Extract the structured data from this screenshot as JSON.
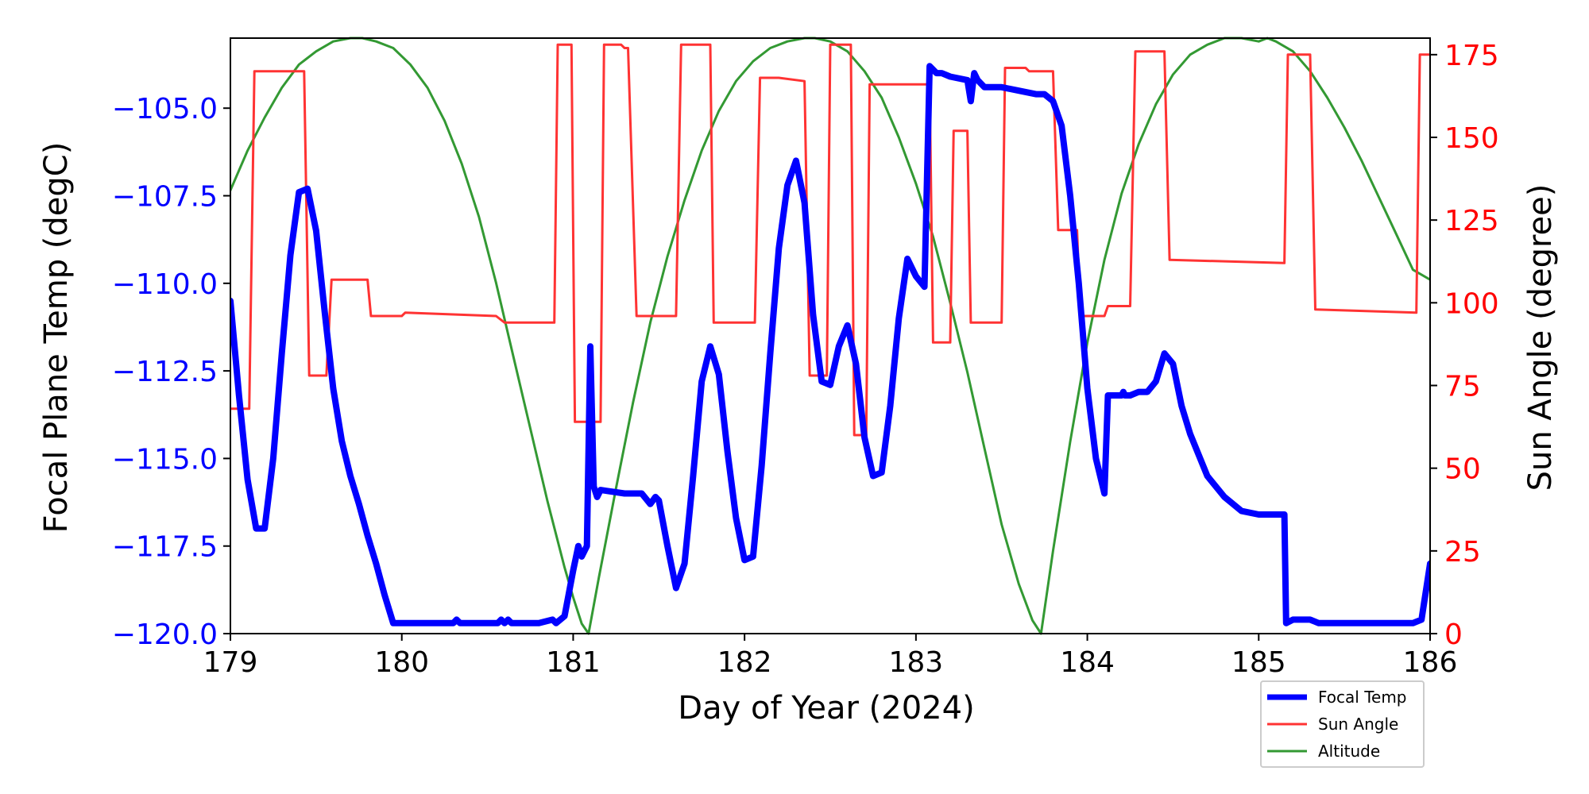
{
  "chart_data": {
    "type": "line",
    "title": "",
    "xlabel": "Day of Year (2024)",
    "ylabel_left": "Focal Plane Temp (degC)",
    "ylabel_right": "Sun Angle (degree)",
    "xlim": [
      179,
      186
    ],
    "ylim_left": [
      -120,
      -103
    ],
    "ylim_right": [
      0,
      180
    ],
    "xticks": [
      "179",
      "180",
      "181",
      "182",
      "183",
      "184",
      "185",
      "186"
    ],
    "yticks_left": [
      "−120.0",
      "−117.5",
      "−115.0",
      "−112.5",
      "−110.0",
      "−107.5",
      "−105.0"
    ],
    "yticks_right": [
      "0",
      "25",
      "50",
      "75",
      "100",
      "125",
      "150",
      "175"
    ],
    "grid": false,
    "legend_position": "lower-right",
    "colors": {
      "left_axis": "#0000ff",
      "right_axis": "#ff0000"
    },
    "series": [
      {
        "name": "Focal Temp",
        "axis": "left",
        "color": "#0000ff",
        "x": [
          179.0,
          179.05,
          179.1,
          179.15,
          179.2,
          179.25,
          179.3,
          179.35,
          179.4,
          179.45,
          179.5,
          179.55,
          179.6,
          179.65,
          179.7,
          179.75,
          179.8,
          179.85,
          179.9,
          179.95,
          180.0,
          180.1,
          180.3,
          180.32,
          180.34,
          180.5,
          180.56,
          180.58,
          180.6,
          180.62,
          180.64,
          180.8,
          180.88,
          180.9,
          180.95,
          181.0,
          181.03,
          181.05,
          181.08,
          181.1,
          181.12,
          181.14,
          181.16,
          181.3,
          181.4,
          181.45,
          181.48,
          181.5,
          181.55,
          181.6,
          181.65,
          181.7,
          181.75,
          181.8,
          181.85,
          181.9,
          181.95,
          182.0,
          182.05,
          182.1,
          182.15,
          182.2,
          182.25,
          182.3,
          182.35,
          182.4,
          182.45,
          182.5,
          182.55,
          182.6,
          182.65,
          182.7,
          182.75,
          182.8,
          182.85,
          182.9,
          182.95,
          183.0,
          183.05,
          183.08,
          183.1,
          183.12,
          183.15,
          183.2,
          183.3,
          183.32,
          183.34,
          183.36,
          183.38,
          183.4,
          183.5,
          183.6,
          183.7,
          183.75,
          183.8,
          183.85,
          183.9,
          183.95,
          184.0,
          184.05,
          184.1,
          184.12,
          184.13,
          184.15,
          184.2,
          184.21,
          184.22,
          184.25,
          184.3,
          184.35,
          184.4,
          184.45,
          184.5,
          184.55,
          184.6,
          184.7,
          184.8,
          184.9,
          185.0,
          185.1,
          185.15,
          185.16,
          185.2,
          185.25,
          185.3,
          185.35,
          185.5,
          185.7,
          185.8,
          185.9,
          185.95,
          186.0
        ],
        "y": [
          -110.5,
          -113.2,
          -115.6,
          -117.0,
          -117.0,
          -115.0,
          -112.0,
          -109.2,
          -107.4,
          -107.3,
          -108.5,
          -110.8,
          -113.0,
          -114.5,
          -115.5,
          -116.3,
          -117.2,
          -118.0,
          -118.9,
          -119.7,
          -119.7,
          -119.7,
          -119.7,
          -119.6,
          -119.7,
          -119.7,
          -119.7,
          -119.6,
          -119.7,
          -119.6,
          -119.7,
          -119.7,
          -119.6,
          -119.7,
          -119.5,
          -118.2,
          -117.5,
          -117.8,
          -117.5,
          -111.8,
          -115.8,
          -116.1,
          -115.9,
          -116.0,
          -116.0,
          -116.3,
          -116.1,
          -116.2,
          -117.5,
          -118.7,
          -118.0,
          -115.5,
          -112.8,
          -111.8,
          -112.6,
          -114.8,
          -116.7,
          -117.9,
          -117.8,
          -115.2,
          -112.0,
          -109.0,
          -107.2,
          -106.5,
          -107.7,
          -110.9,
          -112.8,
          -112.9,
          -111.8,
          -111.2,
          -112.3,
          -114.4,
          -115.5,
          -115.4,
          -113.5,
          -111.0,
          -109.3,
          -109.8,
          -110.1,
          -103.8,
          -103.9,
          -104.0,
          -104.0,
          -104.1,
          -104.2,
          -104.8,
          -104.0,
          -104.2,
          -104.3,
          -104.4,
          -104.4,
          -104.5,
          -104.6,
          -104.6,
          -104.8,
          -105.5,
          -107.5,
          -110.0,
          -113.0,
          -115.0,
          -116.0,
          -113.2,
          -113.2,
          -113.2,
          -113.2,
          -113.1,
          -113.2,
          -113.2,
          -113.1,
          -113.1,
          -112.8,
          -112.0,
          -112.3,
          -113.5,
          -114.3,
          -115.5,
          -116.1,
          -116.5,
          -116.6,
          -116.6,
          -116.6,
          -119.7,
          -119.6,
          -119.6,
          -119.6,
          -119.7,
          -119.7,
          -119.7,
          -119.7,
          -119.7,
          -119.6,
          -118.0
        ],
        "line_width": 8
      },
      {
        "name": "Sun Angle",
        "axis": "right",
        "color": "#ff3333",
        "x": [
          179.0,
          179.11,
          179.14,
          179.43,
          179.46,
          179.56,
          179.59,
          179.8,
          179.82,
          180.0,
          180.02,
          180.55,
          180.6,
          180.62,
          180.85,
          180.89,
          180.91,
          180.99,
          181.01,
          181.16,
          181.18,
          181.28,
          181.3,
          181.32,
          181.37,
          181.4,
          181.6,
          181.63,
          181.8,
          181.82,
          182.06,
          182.09,
          182.2,
          182.35,
          182.38,
          182.48,
          182.5,
          182.62,
          182.64,
          182.71,
          182.73,
          182.83,
          182.86,
          183.08,
          183.1,
          183.2,
          183.22,
          183.3,
          183.32,
          183.35,
          183.37,
          183.5,
          183.52,
          183.64,
          183.66,
          183.8,
          183.83,
          183.94,
          183.96,
          184.1,
          184.12,
          184.25,
          184.28,
          184.45,
          184.48,
          185.15,
          185.17,
          185.3,
          185.33,
          185.92,
          185.94,
          186.0
        ],
        "y": [
          68,
          68,
          170,
          170,
          78,
          78,
          107,
          107,
          96,
          96,
          97,
          96,
          94,
          94,
          94,
          94,
          178,
          178,
          64,
          64,
          178,
          178,
          177,
          177,
          96,
          96,
          96,
          178,
          178,
          94,
          94,
          168,
          168,
          167,
          78,
          78,
          178,
          178,
          60,
          60,
          166,
          166,
          166,
          166,
          88,
          88,
          152,
          152,
          94,
          94,
          94,
          94,
          171,
          171,
          170,
          170,
          122,
          122,
          96,
          96,
          99,
          99,
          176,
          176,
          113,
          112,
          175,
          175,
          98,
          97,
          175,
          175
        ],
        "line_width": 3
      },
      {
        "name": "Altitude",
        "axis": "right",
        "color": "#339933",
        "x": [
          179.0,
          179.1,
          179.2,
          179.3,
          179.4,
          179.5,
          179.6,
          179.7,
          179.77,
          179.85,
          179.95,
          180.05,
          180.15,
          180.25,
          180.35,
          180.45,
          180.55,
          180.65,
          180.75,
          180.85,
          180.95,
          181.0,
          181.05,
          181.09,
          181.15,
          181.25,
          181.35,
          181.45,
          181.55,
          181.65,
          181.75,
          181.85,
          181.95,
          182.05,
          182.15,
          182.25,
          182.35,
          182.41,
          182.5,
          182.6,
          182.7,
          182.8,
          182.9,
          183.0,
          183.1,
          183.2,
          183.3,
          183.4,
          183.5,
          183.6,
          183.68,
          183.73,
          183.8,
          183.9,
          184.0,
          184.1,
          184.2,
          184.3,
          184.4,
          184.5,
          184.6,
          184.7,
          184.8,
          184.9,
          185.0,
          185.05,
          185.1,
          185.2,
          185.3,
          185.4,
          185.5,
          185.6,
          185.7,
          185.8,
          185.9,
          186.0
        ],
        "y": [
          134,
          146,
          156,
          165,
          172,
          176,
          179,
          180,
          180,
          179,
          177,
          172,
          165,
          155,
          142,
          126,
          106,
          84,
          62,
          40,
          20,
          11,
          3,
          0,
          17,
          44,
          70,
          94,
          114,
          131,
          146,
          158,
          167,
          173,
          177,
          179,
          180,
          180,
          179,
          176,
          170,
          162,
          150,
          136,
          120,
          100,
          79,
          56,
          33,
          15,
          4,
          0,
          25,
          58,
          88,
          113,
          133,
          148,
          160,
          169,
          175,
          178,
          180,
          180,
          179,
          180,
          179,
          176,
          170,
          162,
          153,
          143,
          132,
          121,
          110,
          107
        ],
        "line_width": 3
      }
    ]
  }
}
